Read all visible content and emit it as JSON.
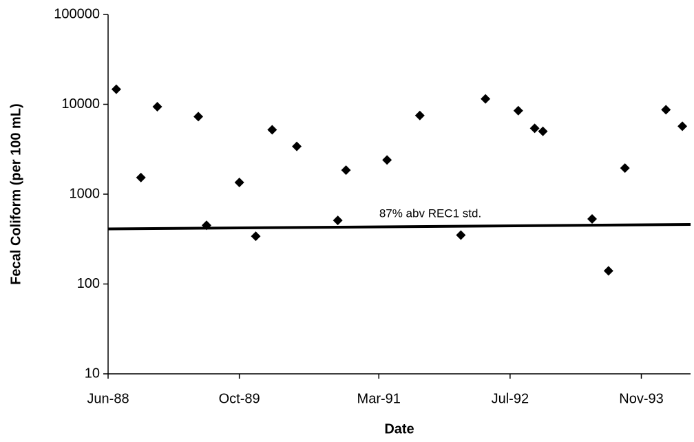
{
  "chart_data": {
    "type": "scatter",
    "x_label": "Date",
    "y_label": "Fecal Coliform (per 100 mL)",
    "log_y": true,
    "color": "#000000",
    "xlim": [
      "1988-06",
      "1994-05"
    ],
    "xticks": [
      {
        "value": "1988-06",
        "label": "Jun-88"
      },
      {
        "value": "1989-10",
        "label": "Oct-89"
      },
      {
        "value": "1991-03",
        "label": "Mar-91"
      },
      {
        "value": "1992-07",
        "label": "Jul-92"
      },
      {
        "value": "1993-11",
        "label": "Nov-93"
      }
    ],
    "ylim": [
      10,
      100000
    ],
    "yticks": [
      10,
      100,
      1000,
      10000,
      100000
    ],
    "x": [
      "1988-07",
      "1988-10",
      "1988-12",
      "1989-05",
      "1989-06",
      "1989-10",
      "1989-12",
      "1990-02",
      "1990-05",
      "1990-10",
      "1990-11",
      "1991-04",
      "1991-08",
      "1992-01",
      "1992-04",
      "1992-08",
      "1992-10",
      "1992-11",
      "1993-05",
      "1993-07",
      "1993-09",
      "1994-02",
      "1994-04"
    ],
    "values": [
      14700,
      1530,
      9400,
      7300,
      450,
      1350,
      340,
      5200,
      3400,
      510,
      1850,
      2400,
      7500,
      350,
      11500,
      8500,
      5400,
      5000,
      530,
      140,
      1950,
      8700,
      5700
    ],
    "reference_line": {
      "x": [
        "1988-06",
        "1994-05"
      ],
      "values": [
        410,
        460
      ],
      "label": "87% abv REC1 std."
    }
  }
}
